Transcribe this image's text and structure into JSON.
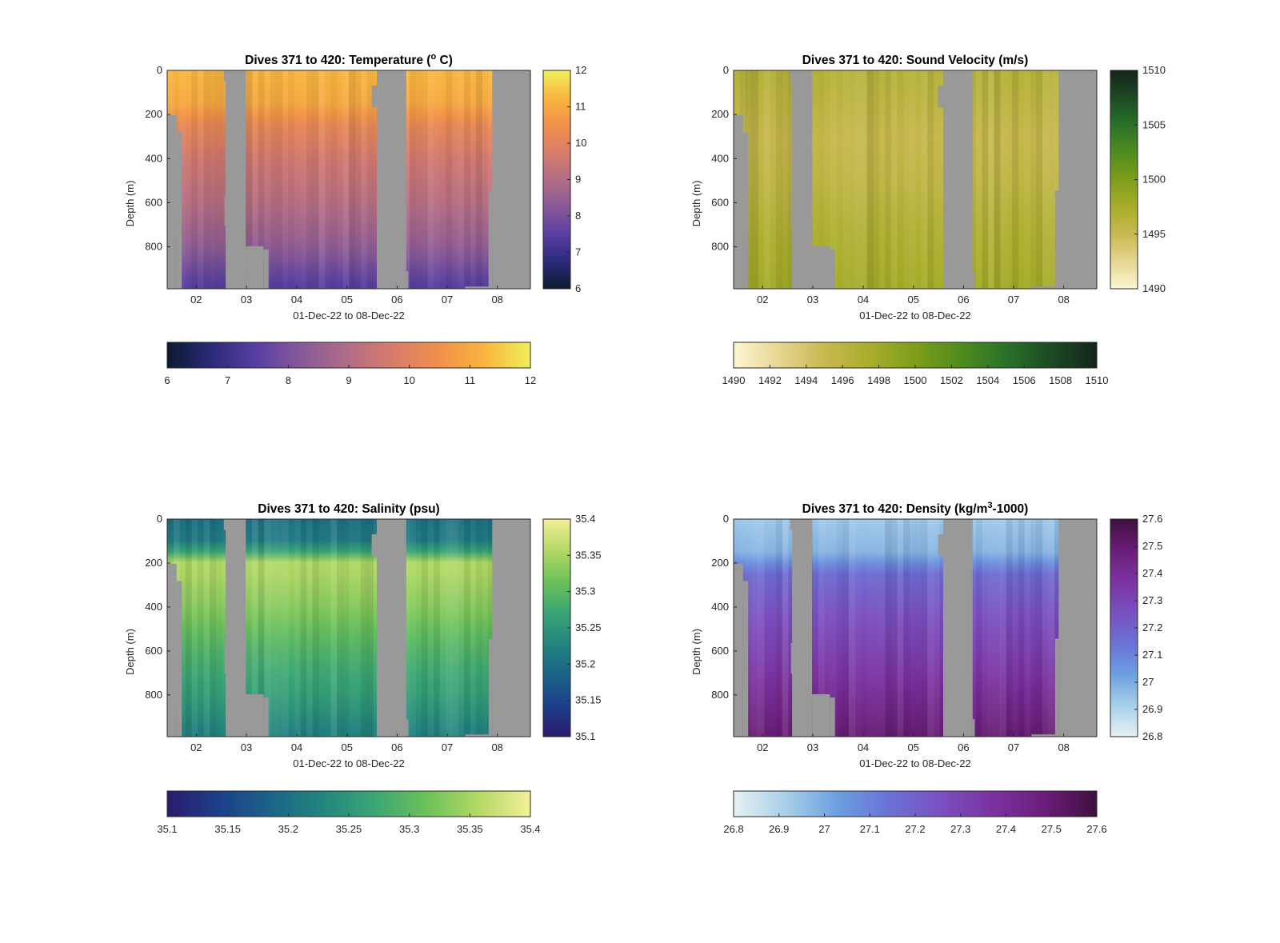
{
  "chart_data": [
    {
      "type": "heatmap",
      "title": "Dives 371 to 420: Temperature (° C)",
      "title_main": "Dives 371 to 420: Temperature (",
      "title_sup": "o",
      "title_end": " C)",
      "xlabel": "01-Dec-22 to 08-Dec-22",
      "ylabel": "Depth (m)",
      "x_tick_labels": [
        "02",
        "03",
        "04",
        "05",
        "06",
        "07",
        "08"
      ],
      "y_tick_labels": [
        "0",
        "200",
        "400",
        "600",
        "800"
      ],
      "ylim": [
        0,
        990
      ],
      "colorbar_range": [
        6,
        12
      ],
      "colorbar_ticks_right": [
        "12",
        "11",
        "10",
        "9",
        "8",
        "7",
        "6"
      ],
      "colorbar_ticks_bottom": [
        "6",
        "7",
        "8",
        "9",
        "10",
        "11",
        "12"
      ],
      "colormap": [
        "#0b1a30",
        "#2b2a7a",
        "#5a3fa3",
        "#8a5a98",
        "#b26d86",
        "#d97d6a",
        "#f1904a",
        "#f9b53f",
        "#eef05a"
      ],
      "profile": [
        {
          "depth": 0,
          "value": 11.3
        },
        {
          "depth": 150,
          "value": 11.0
        },
        {
          "depth": 250,
          "value": 10.2
        },
        {
          "depth": 400,
          "value": 9.6
        },
        {
          "depth": 600,
          "value": 9.1
        },
        {
          "depth": 800,
          "value": 8.4
        },
        {
          "depth": 990,
          "value": 7.4
        }
      ],
      "nodata_color": "#999999"
    },
    {
      "type": "heatmap",
      "title": "Dives 371 to 420: Sound Velocity (m/s)",
      "title_main": "Dives 371 to 420: Sound Velocity (m/s)",
      "title_sup": "",
      "title_end": "",
      "xlabel": "01-Dec-22 to 08-Dec-22",
      "ylabel": "Depth (m)",
      "x_tick_labels": [
        "02",
        "03",
        "04",
        "05",
        "06",
        "07",
        "08"
      ],
      "y_tick_labels": [
        "0",
        "200",
        "400",
        "600",
        "800"
      ],
      "ylim": [
        0,
        990
      ],
      "colorbar_range": [
        1490,
        1510
      ],
      "colorbar_ticks_right": [
        "1510",
        "1505",
        "1500",
        "1495",
        "1490"
      ],
      "colorbar_ticks_bottom": [
        "1490",
        "1492",
        "1494",
        "1496",
        "1498",
        "1500",
        "1502",
        "1504",
        "1506",
        "1508",
        "1510"
      ],
      "colormap": [
        "#fdf6d2",
        "#e6d692",
        "#c9b950",
        "#a8ad2a",
        "#7d9e1a",
        "#4f8c1e",
        "#2a7128",
        "#1c4a24",
        "#13251b"
      ],
      "profile": [
        {
          "depth": 0,
          "value": 1496.5
        },
        {
          "depth": 150,
          "value": 1496.0
        },
        {
          "depth": 300,
          "value": 1495.3
        },
        {
          "depth": 500,
          "value": 1495.8
        },
        {
          "depth": 700,
          "value": 1496.8
        },
        {
          "depth": 990,
          "value": 1497.8
        }
      ],
      "nodata_color": "#999999"
    },
    {
      "type": "heatmap",
      "title": "Dives 371 to 420: Salinity (psu)",
      "title_main": "Dives 371 to 420: Salinity (psu)",
      "title_sup": "",
      "title_end": "",
      "xlabel": "01-Dec-22 to 08-Dec-22",
      "ylabel": "Depth (m)",
      "x_tick_labels": [
        "02",
        "03",
        "04",
        "05",
        "06",
        "07",
        "08"
      ],
      "y_tick_labels": [
        "0",
        "200",
        "400",
        "600",
        "800"
      ],
      "ylim": [
        0,
        990
      ],
      "colorbar_range": [
        35.1,
        35.4
      ],
      "colorbar_ticks_right": [
        "35.4",
        "35.35",
        "35.3",
        "35.25",
        "35.2",
        "35.15",
        "35.1"
      ],
      "colorbar_ticks_bottom": [
        "35.1",
        "35.15",
        "35.2",
        "35.25",
        "35.3",
        "35.35",
        "35.4"
      ],
      "colormap": [
        "#2a1b6e",
        "#1d3f8a",
        "#1b6488",
        "#23867e",
        "#3aa674",
        "#6dc15a",
        "#b3d964",
        "#f4ee98"
      ],
      "profile": [
        {
          "depth": 0,
          "value": 35.2
        },
        {
          "depth": 120,
          "value": 35.22
        },
        {
          "depth": 200,
          "value": 35.36
        },
        {
          "depth": 400,
          "value": 35.33
        },
        {
          "depth": 600,
          "value": 35.29
        },
        {
          "depth": 800,
          "value": 35.26
        },
        {
          "depth": 990,
          "value": 35.22
        }
      ],
      "nodata_color": "#999999"
    },
    {
      "type": "heatmap",
      "title": "Dives 371 to 420: Density (kg/m³-1000)",
      "title_main": "Dives 371 to 420: Density (kg/m",
      "title_sup": "3",
      "title_end": "-1000)",
      "xlabel": "01-Dec-22 to 08-Dec-22",
      "ylabel": "Depth (m)",
      "x_tick_labels": [
        "02",
        "03",
        "04",
        "05",
        "06",
        "07",
        "08"
      ],
      "y_tick_labels": [
        "0",
        "200",
        "400",
        "600",
        "800"
      ],
      "ylim": [
        0,
        990
      ],
      "colorbar_range": [
        26.8,
        27.6
      ],
      "colorbar_ticks_right": [
        "27.6",
        "27.5",
        "27.4",
        "27.3",
        "27.2",
        "27.1",
        "27",
        "26.9",
        "26.8"
      ],
      "colorbar_ticks_bottom": [
        "26.8",
        "26.9",
        "27",
        "27.1",
        "27.2",
        "27.3",
        "27.4",
        "27.5",
        "27.6"
      ],
      "colormap": [
        "#e6f1f2",
        "#a8d0ea",
        "#6c9fe0",
        "#6a72d6",
        "#7a4fbf",
        "#7b32a0",
        "#6a1e78",
        "#3e0f3e"
      ],
      "profile": [
        {
          "depth": 0,
          "value": 26.93
        },
        {
          "depth": 150,
          "value": 26.98
        },
        {
          "depth": 250,
          "value": 27.17
        },
        {
          "depth": 450,
          "value": 27.26
        },
        {
          "depth": 700,
          "value": 27.36
        },
        {
          "depth": 990,
          "value": 27.5
        }
      ],
      "nodata_color": "#999999"
    }
  ]
}
